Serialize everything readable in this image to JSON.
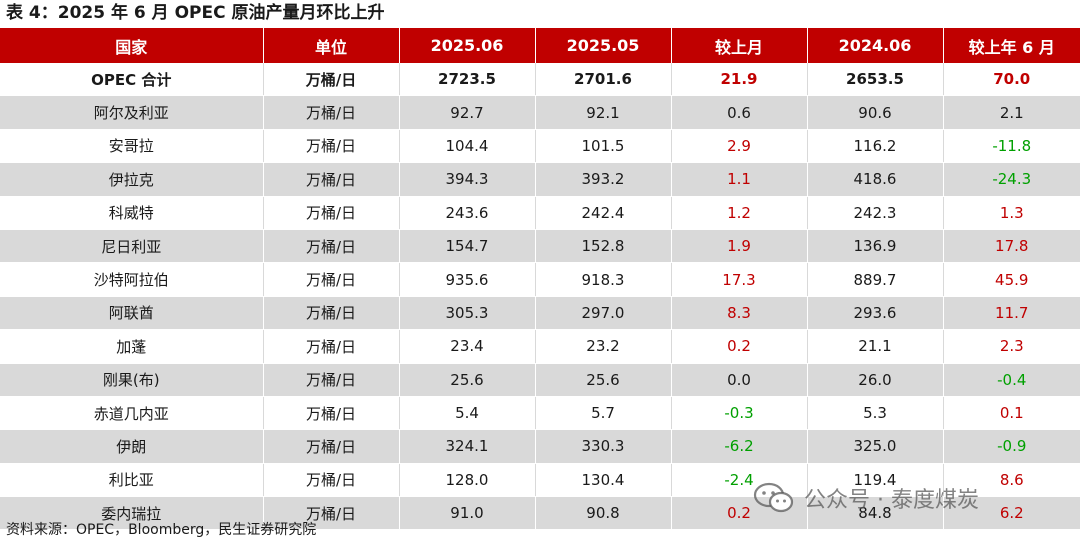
{
  "title": "表 4：2025 年 6 月 OPEC 原油产量月环比上升",
  "columns": [
    "国家",
    "单位",
    "2025.06",
    "2025.05",
    "较上月",
    "2024.06",
    "较上年 6 月"
  ],
  "rows": [
    {
      "country": "OPEC 合计",
      "unit": "万桶/日",
      "v2506": "2723.5",
      "v2505": "2701.6",
      "mom": "21.9",
      "mom_sign": "pos",
      "v2406": "2653.5",
      "yoy": "70.0",
      "yoy_sign": "pos"
    },
    {
      "country": "阿尔及利亚",
      "unit": "万桶/日",
      "v2506": "92.7",
      "v2505": "92.1",
      "mom": "0.6",
      "mom_sign": "neu",
      "v2406": "90.6",
      "yoy": "2.1",
      "yoy_sign": "neu"
    },
    {
      "country": "安哥拉",
      "unit": "万桶/日",
      "v2506": "104.4",
      "v2505": "101.5",
      "mom": "2.9",
      "mom_sign": "pos",
      "v2406": "116.2",
      "yoy": "-11.8",
      "yoy_sign": "neg"
    },
    {
      "country": "伊拉克",
      "unit": "万桶/日",
      "v2506": "394.3",
      "v2505": "393.2",
      "mom": "1.1",
      "mom_sign": "pos",
      "v2406": "418.6",
      "yoy": "-24.3",
      "yoy_sign": "neg"
    },
    {
      "country": "科威特",
      "unit": "万桶/日",
      "v2506": "243.6",
      "v2505": "242.4",
      "mom": "1.2",
      "mom_sign": "pos",
      "v2406": "242.3",
      "yoy": "1.3",
      "yoy_sign": "pos"
    },
    {
      "country": "尼日利亚",
      "unit": "万桶/日",
      "v2506": "154.7",
      "v2505": "152.8",
      "mom": "1.9",
      "mom_sign": "pos",
      "v2406": "136.9",
      "yoy": "17.8",
      "yoy_sign": "pos"
    },
    {
      "country": "沙特阿拉伯",
      "unit": "万桶/日",
      "v2506": "935.6",
      "v2505": "918.3",
      "mom": "17.3",
      "mom_sign": "pos",
      "v2406": "889.7",
      "yoy": "45.9",
      "yoy_sign": "pos"
    },
    {
      "country": "阿联酋",
      "unit": "万桶/日",
      "v2506": "305.3",
      "v2505": "297.0",
      "mom": "8.3",
      "mom_sign": "pos",
      "v2406": "293.6",
      "yoy": "11.7",
      "yoy_sign": "pos"
    },
    {
      "country": "加蓬",
      "unit": "万桶/日",
      "v2506": "23.4",
      "v2505": "23.2",
      "mom": "0.2",
      "mom_sign": "pos",
      "v2406": "21.1",
      "yoy": "2.3",
      "yoy_sign": "pos"
    },
    {
      "country": "刚果(布)",
      "unit": "万桶/日",
      "v2506": "25.6",
      "v2505": "25.6",
      "mom": "0.0",
      "mom_sign": "neu",
      "v2406": "26.0",
      "yoy": "-0.4",
      "yoy_sign": "neg"
    },
    {
      "country": "赤道几内亚",
      "unit": "万桶/日",
      "v2506": "5.4",
      "v2505": "5.7",
      "mom": "-0.3",
      "mom_sign": "neg",
      "v2406": "5.3",
      "yoy": "0.1",
      "yoy_sign": "pos"
    },
    {
      "country": "伊朗",
      "unit": "万桶/日",
      "v2506": "324.1",
      "v2505": "330.3",
      "mom": "-6.2",
      "mom_sign": "neg",
      "v2406": "325.0",
      "yoy": "-0.9",
      "yoy_sign": "neg"
    },
    {
      "country": "利比亚",
      "unit": "万桶/日",
      "v2506": "128.0",
      "v2505": "130.4",
      "mom": "-2.4",
      "mom_sign": "neg",
      "v2406": "119.4",
      "yoy": "8.6",
      "yoy_sign": "pos"
    },
    {
      "country": "委内瑞拉",
      "unit": "万桶/日",
      "v2506": "91.0",
      "v2505": "90.8",
      "mom": "0.2",
      "mom_sign": "pos",
      "v2406": "84.8",
      "yoy": "6.2",
      "yoy_sign": "pos"
    }
  ],
  "source": "资料来源：OPEC，Bloomberg，民生证券研究院",
  "watermark": {
    "text": "公众号 · 泰度煤炭",
    "icon": "wechat-icon"
  },
  "colors": {
    "header_bg": "#c00000",
    "positive": "#c00000",
    "negative": "#00a000",
    "shade": "#d9d9d9"
  }
}
